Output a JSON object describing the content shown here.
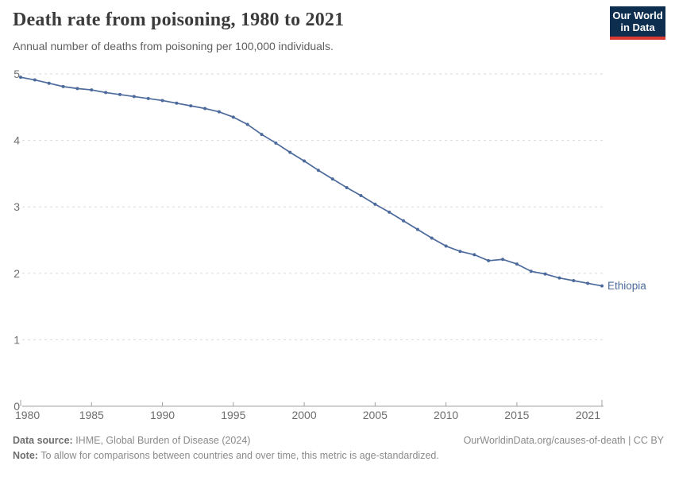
{
  "header": {
    "title": "Death rate from poisoning, 1980 to 2021",
    "subtitle": "Annual number of deaths from poisoning per 100,000 individuals.",
    "logo": {
      "line1": "Our World",
      "line2": "in Data",
      "bg_color": "#0d2e4e",
      "accent_color": "#d93a33"
    }
  },
  "chart_data": {
    "type": "line",
    "title": "Death rate from poisoning, 1980 to 2021",
    "xlabel": "",
    "ylabel": "Annual number of deaths from poisoning per 100,000 individuals",
    "xlim": [
      1980,
      2021
    ],
    "ylim": [
      0,
      5
    ],
    "x_ticks": [
      1980,
      1985,
      1990,
      1995,
      2000,
      2005,
      2010,
      2015,
      2021
    ],
    "y_ticks": [
      0,
      1,
      2,
      3,
      4,
      5
    ],
    "grid": "horizontal-dashed",
    "legend_position": "end-of-line-label",
    "x": [
      1980,
      1981,
      1982,
      1983,
      1984,
      1985,
      1986,
      1987,
      1988,
      1989,
      1990,
      1991,
      1992,
      1993,
      1994,
      1995,
      1996,
      1997,
      1998,
      1999,
      2000,
      2001,
      2002,
      2003,
      2004,
      2005,
      2006,
      2007,
      2008,
      2009,
      2010,
      2011,
      2012,
      2013,
      2014,
      2015,
      2016,
      2017,
      2018,
      2019,
      2020,
      2021
    ],
    "series": [
      {
        "name": "Ethiopia",
        "color": "#4c6a9c",
        "values": [
          4.95,
          4.91,
          4.86,
          4.81,
          4.78,
          4.76,
          4.72,
          4.69,
          4.66,
          4.63,
          4.6,
          4.56,
          4.52,
          4.48,
          4.43,
          4.35,
          4.24,
          4.09,
          3.96,
          3.82,
          3.69,
          3.55,
          3.42,
          3.29,
          3.17,
          3.04,
          2.92,
          2.79,
          2.66,
          2.53,
          2.41,
          2.33,
          2.28,
          2.19,
          2.21,
          2.14,
          2.03,
          1.99,
          1.93,
          1.89,
          1.85,
          1.81
        ]
      }
    ],
    "style": {
      "grid_color": "#d9d9d9",
      "axis_color": "#a1a1a1",
      "tick_label_color": "#6e6e6e"
    }
  },
  "footer": {
    "source_label": "Data source:",
    "source_text": " IHME, Global Burden of Disease (2024)",
    "rights_text": "OurWorldinData.org/causes-of-death | CC BY",
    "note_label": "Note:",
    "note_text": " To allow for comparisons between countries and over time, this metric is age-standardized."
  }
}
